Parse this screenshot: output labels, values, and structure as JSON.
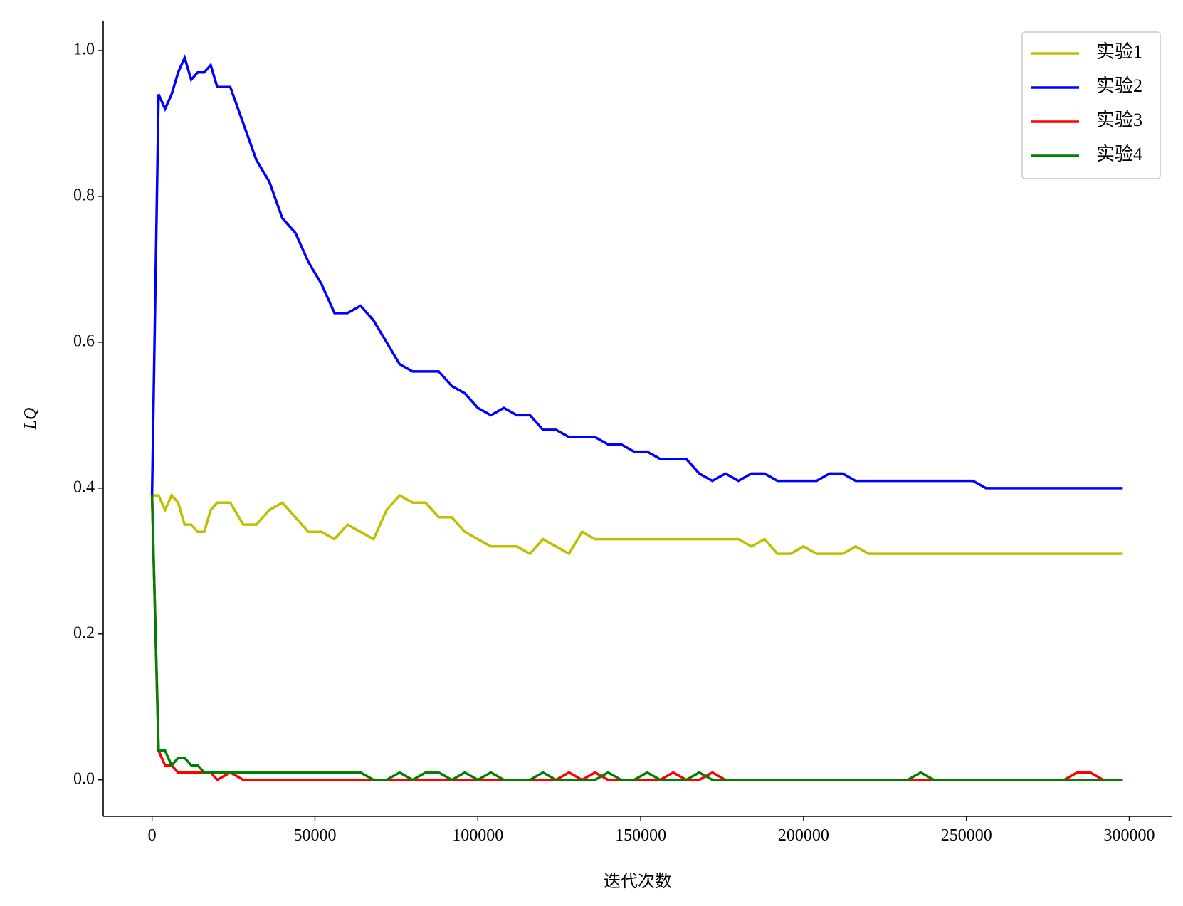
{
  "chart_data": {
    "type": "line",
    "xlabel": "迭代次数",
    "ylabel": "LQ",
    "x": [
      0,
      2000,
      4000,
      6000,
      8000,
      10000,
      12000,
      14000,
      16000,
      18000,
      20000,
      24000,
      28000,
      32000,
      36000,
      40000,
      44000,
      48000,
      52000,
      56000,
      60000,
      64000,
      68000,
      72000,
      76000,
      80000,
      84000,
      88000,
      92000,
      96000,
      100000,
      104000,
      108000,
      112000,
      116000,
      120000,
      124000,
      128000,
      132000,
      136000,
      140000,
      144000,
      148000,
      152000,
      156000,
      160000,
      164000,
      168000,
      172000,
      176000,
      180000,
      184000,
      188000,
      192000,
      196000,
      200000,
      204000,
      208000,
      212000,
      216000,
      220000,
      224000,
      228000,
      232000,
      236000,
      240000,
      244000,
      248000,
      252000,
      256000,
      260000,
      264000,
      268000,
      272000,
      276000,
      280000,
      284000,
      288000,
      292000,
      296000,
      298000
    ],
    "series": [
      {
        "name": "实验1",
        "color": "#bfbf00",
        "values": [
          0.39,
          0.39,
          0.37,
          0.39,
          0.38,
          0.35,
          0.35,
          0.34,
          0.34,
          0.37,
          0.38,
          0.38,
          0.35,
          0.35,
          0.37,
          0.38,
          0.36,
          0.34,
          0.34,
          0.33,
          0.35,
          0.34,
          0.33,
          0.37,
          0.39,
          0.38,
          0.38,
          0.36,
          0.36,
          0.34,
          0.33,
          0.32,
          0.32,
          0.32,
          0.31,
          0.33,
          0.32,
          0.31,
          0.34,
          0.33,
          0.33,
          0.33,
          0.33,
          0.33,
          0.33,
          0.33,
          0.33,
          0.33,
          0.33,
          0.33,
          0.33,
          0.32,
          0.33,
          0.31,
          0.31,
          0.32,
          0.31,
          0.31,
          0.31,
          0.32,
          0.31,
          0.31,
          0.31,
          0.31,
          0.31,
          0.31,
          0.31,
          0.31,
          0.31,
          0.31,
          0.31,
          0.31,
          0.31,
          0.31,
          0.31,
          0.31,
          0.31,
          0.31,
          0.31,
          0.31,
          0.31
        ]
      },
      {
        "name": "实验2",
        "color": "#0000ff",
        "values": [
          0.39,
          0.94,
          0.92,
          0.94,
          0.97,
          0.99,
          0.96,
          0.97,
          0.97,
          0.98,
          0.95,
          0.95,
          0.9,
          0.85,
          0.82,
          0.77,
          0.75,
          0.71,
          0.68,
          0.64,
          0.64,
          0.65,
          0.63,
          0.6,
          0.57,
          0.56,
          0.56,
          0.56,
          0.54,
          0.53,
          0.51,
          0.5,
          0.51,
          0.5,
          0.5,
          0.48,
          0.48,
          0.47,
          0.47,
          0.47,
          0.46,
          0.46,
          0.45,
          0.45,
          0.44,
          0.44,
          0.44,
          0.42,
          0.41,
          0.42,
          0.41,
          0.42,
          0.42,
          0.41,
          0.41,
          0.41,
          0.41,
          0.42,
          0.42,
          0.41,
          0.41,
          0.41,
          0.41,
          0.41,
          0.41,
          0.41,
          0.41,
          0.41,
          0.41,
          0.4,
          0.4,
          0.4,
          0.4,
          0.4,
          0.4,
          0.4,
          0.4,
          0.4,
          0.4,
          0.4,
          0.4
        ]
      },
      {
        "name": "实验3",
        "color": "#ff0000",
        "values": [
          0.39,
          0.04,
          0.02,
          0.02,
          0.01,
          0.01,
          0.01,
          0.01,
          0.01,
          0.01,
          0,
          0.01,
          0,
          0,
          0,
          0,
          0,
          0,
          0,
          0,
          0,
          0,
          0,
          0,
          0,
          0,
          0,
          0,
          0,
          0,
          0,
          0,
          0,
          0,
          0,
          0,
          0,
          0.01,
          0,
          0.01,
          0,
          0,
          0,
          0,
          0,
          0.01,
          0,
          0,
          0.01,
          0,
          0,
          0,
          0,
          0,
          0,
          0,
          0,
          0,
          0,
          0,
          0,
          0,
          0,
          0,
          0,
          0,
          0,
          0,
          0,
          0,
          0,
          0,
          0,
          0,
          0,
          0,
          0.01,
          0.01,
          0,
          0,
          0
        ]
      },
      {
        "name": "实验4",
        "color": "#008000",
        "values": [
          0.39,
          0.04,
          0.04,
          0.02,
          0.03,
          0.03,
          0.02,
          0.02,
          0.01,
          0.01,
          0.01,
          0.01,
          0.01,
          0.01,
          0.01,
          0.01,
          0.01,
          0.01,
          0.01,
          0.01,
          0.01,
          0.01,
          0,
          0,
          0.01,
          0,
          0.01,
          0.01,
          0,
          0.01,
          0,
          0.01,
          0,
          0,
          0,
          0.01,
          0,
          0,
          0,
          0,
          0.01,
          0,
          0,
          0.01,
          0,
          0,
          0,
          0.01,
          0,
          0,
          0,
          0,
          0,
          0,
          0,
          0,
          0,
          0,
          0,
          0,
          0,
          0,
          0,
          0,
          0.01,
          0,
          0,
          0,
          0,
          0,
          0,
          0,
          0,
          0,
          0,
          0,
          0,
          0,
          0,
          0,
          0
        ]
      }
    ],
    "xlim": [
      -15000,
      313000
    ],
    "ylim": [
      -0.05,
      1.04
    ],
    "xticks": [
      0,
      50000,
      100000,
      150000,
      200000,
      250000,
      300000
    ],
    "yticks": [
      {
        "value": 0,
        "label": "0.0"
      },
      0.2,
      0.4,
      0.6,
      0.8,
      {
        "value": 1,
        "label": "1.0"
      }
    ],
    "legend": "upper right"
  }
}
